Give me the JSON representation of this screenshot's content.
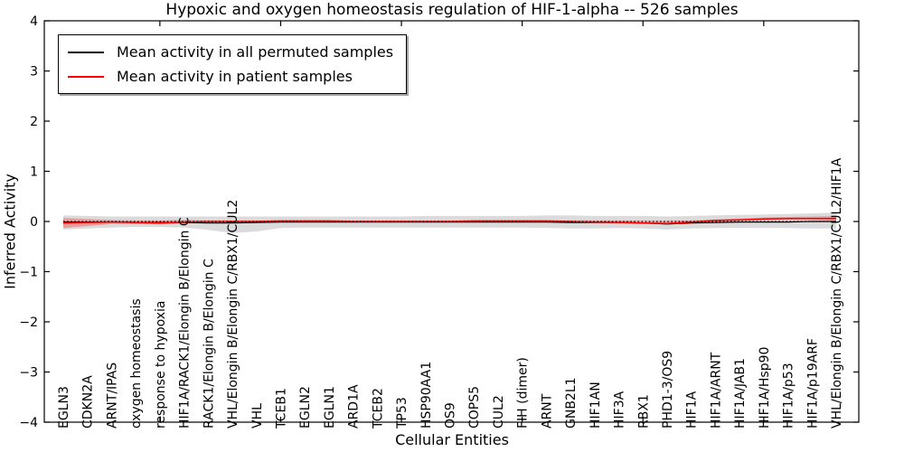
{
  "title": "Hypoxic and oxygen homeostasis regulation of HIF-1-alpha -- 526 samples",
  "legend": {
    "entries": [
      {
        "label": "Mean activity in all permuted samples",
        "color": "#000000"
      },
      {
        "label": "Mean activity in patient samples",
        "color": "#ff0000"
      }
    ]
  },
  "chart_data": {
    "type": "line",
    "title": "Hypoxic and oxygen homeostasis regulation of HIF-1-alpha -- 526 samples",
    "xlabel": "Cellular Entities",
    "ylabel": "Inferred Activity",
    "ylim": [
      -4,
      4
    ],
    "grid": false,
    "legend_position": "upper left",
    "yticks": [
      {
        "v": 4,
        "label": "4"
      },
      {
        "v": 3,
        "label": "3"
      },
      {
        "v": 2,
        "label": "2"
      },
      {
        "v": 1,
        "label": "1"
      },
      {
        "v": 0,
        "label": "0"
      },
      {
        "v": -1,
        "label": "−1"
      },
      {
        "v": -2,
        "label": "−2"
      },
      {
        "v": -3,
        "label": "−3"
      },
      {
        "v": -4,
        "label": "−4"
      }
    ],
    "xtick_indices": [
      4,
      9,
      14,
      19,
      24,
      29
    ],
    "categories": [
      "EGLN3",
      "CDKN2A",
      "ARNT/IPAS",
      "oxygen homeostasis",
      "response to hypoxia",
      "HIF1A/RACK1/Elongin B/Elongin C",
      "RACK1/Elongin B/Elongin C",
      "VHL/Elongin B/Elongin C/RBX1/CUL2",
      "VHL",
      "TCEB1",
      "EGLN2",
      "EGLN1",
      "ARD1A",
      "TCEB2",
      "TP53",
      "HSP90AA1",
      "OS9",
      "COPS5",
      "CUL2",
      "FIH (dimer)",
      "ARNT",
      "GNB2L1",
      "HIF1AN",
      "HIF3A",
      "RBX1",
      "PHD1-3/OS9",
      "HIF1A",
      "HIF1A/ARNT",
      "HIF1A/JAB1",
      "HIF1A/Hsp90",
      "HIF1A/p53",
      "HIF1A/p19ARF",
      "VHL/Elongin B/Elongin C/RBX1/CUL2/HIF1A"
    ],
    "bands": [
      {
        "name": "permuted-samples-range",
        "color": "#000000",
        "opacity": 0.14,
        "upper": [
          0.12,
          0.11,
          0.1,
          0.1,
          0.1,
          0.1,
          0.1,
          0.1,
          0.1,
          0.1,
          0.1,
          0.1,
          0.1,
          0.1,
          0.1,
          0.11,
          0.11,
          0.11,
          0.11,
          0.11,
          0.12,
          0.12,
          0.11,
          0.11,
          0.11,
          0.1,
          0.11,
          0.12,
          0.13,
          0.14,
          0.15,
          0.16,
          0.18
        ],
        "lower": [
          -0.16,
          -0.14,
          -0.12,
          -0.11,
          -0.11,
          -0.12,
          -0.17,
          -0.23,
          -0.2,
          -0.13,
          -0.12,
          -0.12,
          -0.12,
          -0.12,
          -0.12,
          -0.12,
          -0.12,
          -0.12,
          -0.12,
          -0.12,
          -0.13,
          -0.14,
          -0.14,
          -0.13,
          -0.14,
          -0.16,
          -0.14,
          -0.13,
          -0.13,
          -0.13,
          -0.13,
          -0.14,
          -0.14
        ]
      },
      {
        "name": "patient-samples-range",
        "color": "#ff0000",
        "opacity": 0.28,
        "upper": [
          0.07,
          0.05,
          0.03,
          0.02,
          0.02,
          0.03,
          0.02,
          0.02,
          0.02,
          0.02,
          0.02,
          0.02,
          0.02,
          0.02,
          0.02,
          0.02,
          0.02,
          0.02,
          0.02,
          0.02,
          0.02,
          0.02,
          0.02,
          0.02,
          0.01,
          0.01,
          0.02,
          0.04,
          0.06,
          0.08,
          0.09,
          0.1,
          0.11
        ],
        "lower": [
          -0.13,
          -0.09,
          -0.05,
          -0.05,
          -0.06,
          -0.04,
          -0.03,
          -0.02,
          -0.02,
          -0.01,
          -0.01,
          -0.01,
          -0.01,
          -0.01,
          -0.01,
          -0.01,
          -0.01,
          -0.01,
          -0.01,
          -0.01,
          -0.01,
          -0.02,
          -0.02,
          -0.03,
          -0.05,
          -0.06,
          -0.03,
          0.0,
          0.01,
          0.03,
          0.04,
          0.04,
          0.02
        ]
      }
    ],
    "series": [
      {
        "name": "Mean activity in all permuted samples",
        "color": "#000000",
        "style": "solid",
        "width": 1.2,
        "values": [
          -0.01,
          -0.01,
          -0.01,
          -0.02,
          -0.02,
          -0.02,
          -0.03,
          -0.03,
          -0.02,
          -0.01,
          -0.01,
          -0.01,
          -0.01,
          -0.01,
          -0.01,
          -0.01,
          -0.01,
          -0.01,
          -0.01,
          -0.01,
          -0.01,
          -0.02,
          -0.02,
          -0.02,
          -0.03,
          -0.05,
          -0.03,
          -0.02,
          -0.01,
          -0.01,
          -0.01,
          0.0,
          0.0
        ]
      },
      {
        "name": "Mean activity in patient samples",
        "color": "#ff0000",
        "style": "solid",
        "width": 1.5,
        "values": [
          -0.03,
          -0.02,
          -0.01,
          -0.02,
          -0.03,
          -0.01,
          0.0,
          0.0,
          0.0,
          0.01,
          0.01,
          0.01,
          0.0,
          0.0,
          0.0,
          0.0,
          0.0,
          0.01,
          0.01,
          0.01,
          0.01,
          0.0,
          -0.01,
          -0.02,
          -0.03,
          -0.04,
          -0.01,
          0.02,
          0.03,
          0.05,
          0.06,
          0.06,
          0.06
        ]
      },
      {
        "name": "zero-reference",
        "color": "#000000",
        "style": "dotted",
        "width": 1.2,
        "values": [
          0,
          0,
          0,
          0,
          0,
          0,
          0,
          0,
          0,
          0,
          0,
          0,
          0,
          0,
          0,
          0,
          0,
          0,
          0,
          0,
          0,
          0,
          0,
          0,
          0,
          0,
          0,
          0,
          0,
          0,
          0,
          0,
          0
        ]
      }
    ]
  }
}
